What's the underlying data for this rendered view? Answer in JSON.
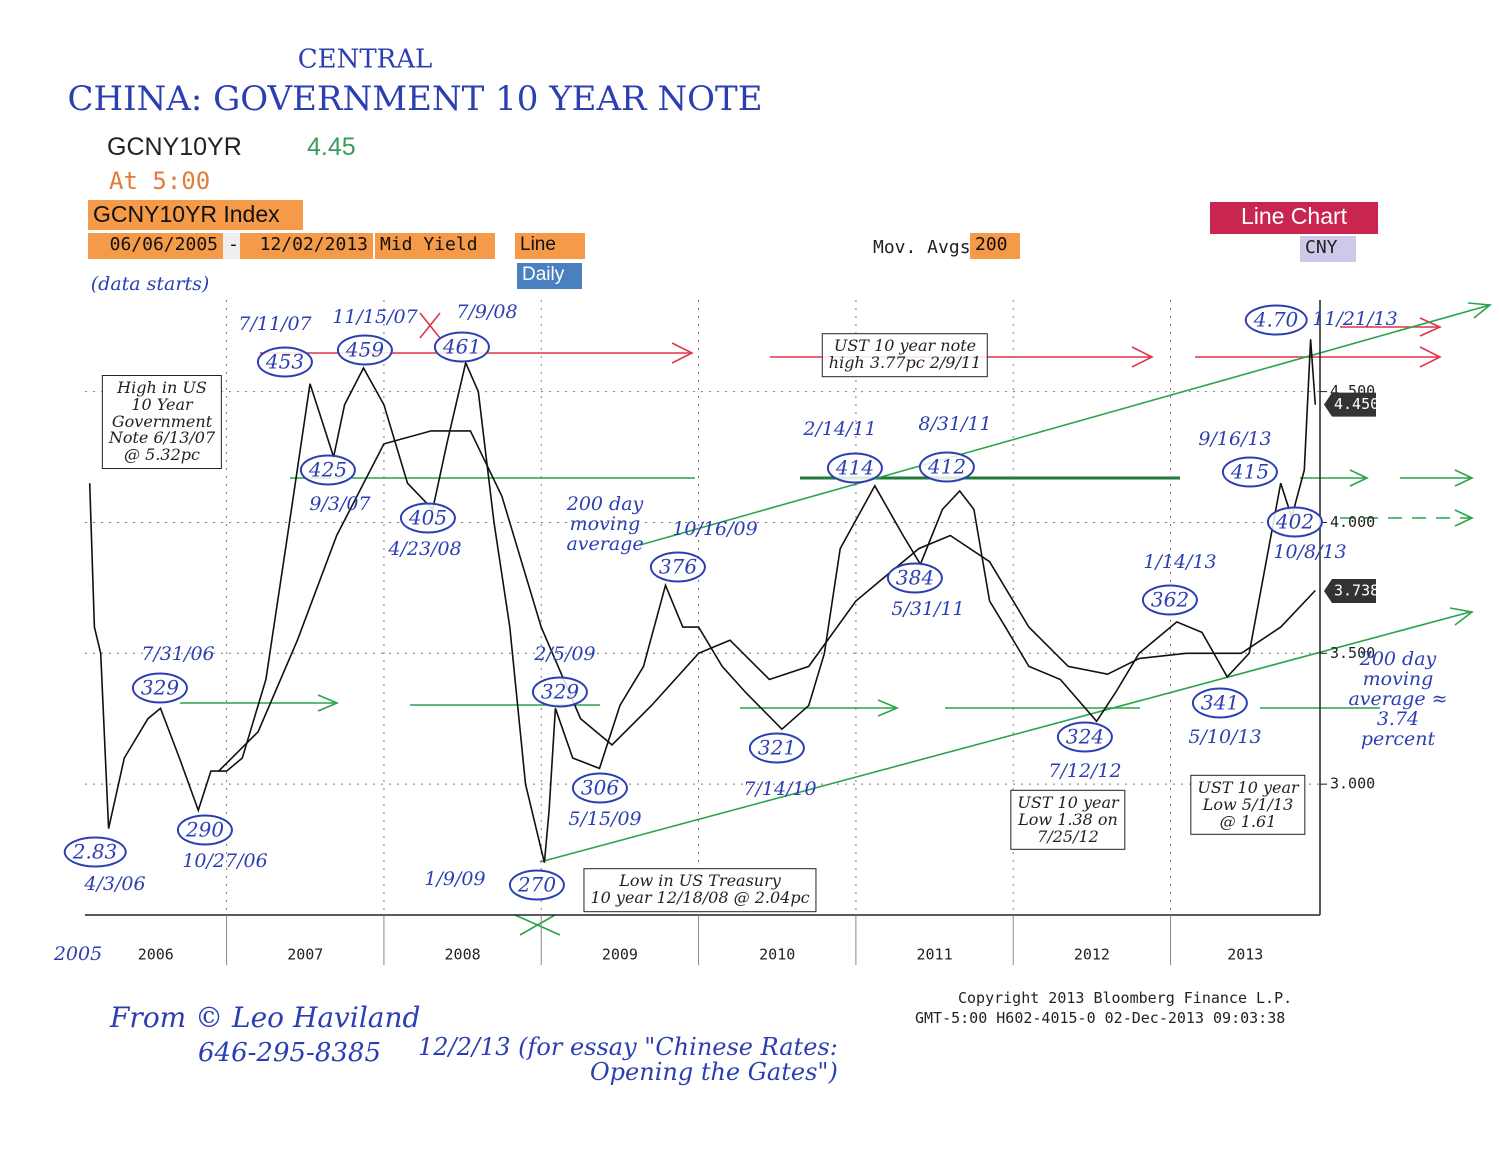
{
  "toolbar": {
    "ticker": "GCNY10YR",
    "last": 4.45,
    "time": "At 5:00",
    "security": "GCNY10YR Index",
    "start_date": "06/06/2005",
    "dash": "-",
    "end_date": "12/02/2013",
    "field": "Mid Yield",
    "style": "Line",
    "period": "Daily",
    "mov_avgs_label": "Mov. Avgs",
    "mov_avgs": 200,
    "chart_type": "Line Chart",
    "currency": "CNY"
  },
  "chart_data": {
    "type": "line",
    "title": "CHINA: GOVERNMENT 10 YEAR NOTE",
    "title_insert": "CENTRAL",
    "series": [
      {
        "color": "#111111",
        "x": [
          2006.13,
          2006.16,
          2006.2,
          2006.25,
          2006.35,
          2006.5,
          2006.58,
          2006.7,
          2006.82,
          2006.9,
          2007.0,
          2007.1,
          2007.25,
          2007.4,
          2007.53,
          2007.6,
          2007.68,
          2007.75,
          2007.87,
          2008.0,
          2008.15,
          2008.31,
          2008.4,
          2008.52,
          2008.6,
          2008.7,
          2008.8,
          2008.9,
          2009.02,
          2009.05,
          2009.09,
          2009.2,
          2009.37,
          2009.5,
          2009.65,
          2009.79,
          2009.9,
          2010.0,
          2010.15,
          2010.3,
          2010.53,
          2010.7,
          2010.8,
          2010.9,
          2011.12,
          2011.3,
          2011.41,
          2011.55,
          2011.66,
          2011.75,
          2011.85,
          2011.95,
          2012.1,
          2012.3,
          2012.53,
          2012.65,
          2012.8,
          2013.04,
          2013.2,
          2013.36,
          2013.5,
          2013.7,
          2013.77,
          2013.85,
          2013.89,
          2013.92
        ],
        "values": [
          4.15,
          3.6,
          3.5,
          2.83,
          3.1,
          3.25,
          3.29,
          3.1,
          2.9,
          3.05,
          3.05,
          3.1,
          3.4,
          4.0,
          4.53,
          4.4,
          4.25,
          4.45,
          4.59,
          4.45,
          4.15,
          4.05,
          4.3,
          4.61,
          4.5,
          4.0,
          3.6,
          3.0,
          2.7,
          2.9,
          3.29,
          3.1,
          3.06,
          3.3,
          3.45,
          3.76,
          3.6,
          3.6,
          3.45,
          3.35,
          3.21,
          3.3,
          3.5,
          3.9,
          4.14,
          3.95,
          3.84,
          4.05,
          4.12,
          4.05,
          3.7,
          3.6,
          3.45,
          3.4,
          3.24,
          3.35,
          3.5,
          3.62,
          3.58,
          3.41,
          3.5,
          4.15,
          4.02,
          4.2,
          4.7,
          4.45
        ]
      },
      {
        "color": "#111111",
        "x": [
          2006.95,
          2007.2,
          2007.45,
          2007.7,
          2008.0,
          2008.3,
          2008.55,
          2008.75,
          2009.0,
          2009.25,
          2009.45,
          2009.7,
          2010.0,
          2010.2,
          2010.45,
          2010.7,
          2011.0,
          2011.4,
          2011.6,
          2011.85,
          2012.1,
          2012.35,
          2012.6,
          2012.8,
          2013.1,
          2013.45,
          2013.7,
          2013.92
        ],
        "values": [
          3.05,
          3.2,
          3.55,
          3.95,
          4.3,
          4.35,
          4.35,
          4.1,
          3.6,
          3.25,
          3.15,
          3.3,
          3.5,
          3.55,
          3.4,
          3.45,
          3.7,
          3.9,
          3.95,
          3.85,
          3.6,
          3.45,
          3.42,
          3.48,
          3.5,
          3.5,
          3.6,
          3.74
        ]
      }
    ],
    "xlim": [
      2006.1,
      2013.95
    ],
    "ylim": [
      2.5,
      4.85
    ],
    "xticks": [
      {
        "value": 2006,
        "label": "2006"
      },
      {
        "value": 2007,
        "label": "2007"
      },
      {
        "value": 2008,
        "label": "2008"
      },
      {
        "value": 2009,
        "label": "2009"
      },
      {
        "value": 2010,
        "label": "2010"
      },
      {
        "value": 2011,
        "label": "2011"
      },
      {
        "value": 2012,
        "label": "2012"
      },
      {
        "value": 2013,
        "label": "2013"
      }
    ],
    "yticks": [
      {
        "value": 3,
        "label": "3.000"
      },
      {
        "value": 3.5,
        "label": "3.500"
      },
      {
        "value": 4,
        "label": "4.000"
      },
      {
        "value": 4.5,
        "label": "4.500"
      }
    ],
    "price_tags": [
      {
        "value": 4.45,
        "label": "4.450"
      },
      {
        "value": 3.738,
        "label": "3.738"
      }
    ],
    "grid": true
  },
  "annotations": [
    "(data starts)",
    "2005",
    "7/11/07",
    "453",
    "11/15/07",
    "459",
    "7/9/08",
    "461",
    "425",
    "9/3/07",
    "405",
    "4/23/08",
    "7/31/06",
    "329",
    "2.83",
    "4/3/06",
    "290",
    "10/27/06",
    "2/5/09",
    "329",
    "306",
    "5/15/09",
    "1/9/09",
    "270",
    "Low in US Treasury\n10 year 12/18/08 @ 2.04pc",
    "10/16/09",
    "376",
    "200 day\nmoving\naverage",
    "321",
    "7/14/10",
    "2/14/11",
    "414",
    "8/31/11",
    "412",
    "384",
    "5/31/11",
    "UST 10 year note\nhigh 3.77pc 2/9/11",
    "1/14/13",
    "362",
    "324",
    "7/12/12",
    "UST 10 year\nLow 1.38 on\n7/25/12",
    "341",
    "5/10/13",
    "UST 10 year\nLow 5/1/13\n@ 1.61",
    "9/16/13",
    "415",
    "402",
    "10/8/13",
    "4.70",
    "11/21/13",
    "200 day moving\naverage ≈ 3.74\npercent",
    "High in US\n10 Year\nGovernment\nNote 6/13/07\n@ 5.32pc"
  ],
  "footer": {
    "copyright": "Copyright 2013 Bloomberg Finance L.P.",
    "stamp": "GMT-5:00 H602-4015-0 02-Dec-2013 09:03:38"
  },
  "signature": {
    "author": "From © Leo Haviland",
    "phone": "646-295-8385",
    "note": "12/2/13 (for essay \"Chinese Rates:\nOpening the Gates\")"
  }
}
